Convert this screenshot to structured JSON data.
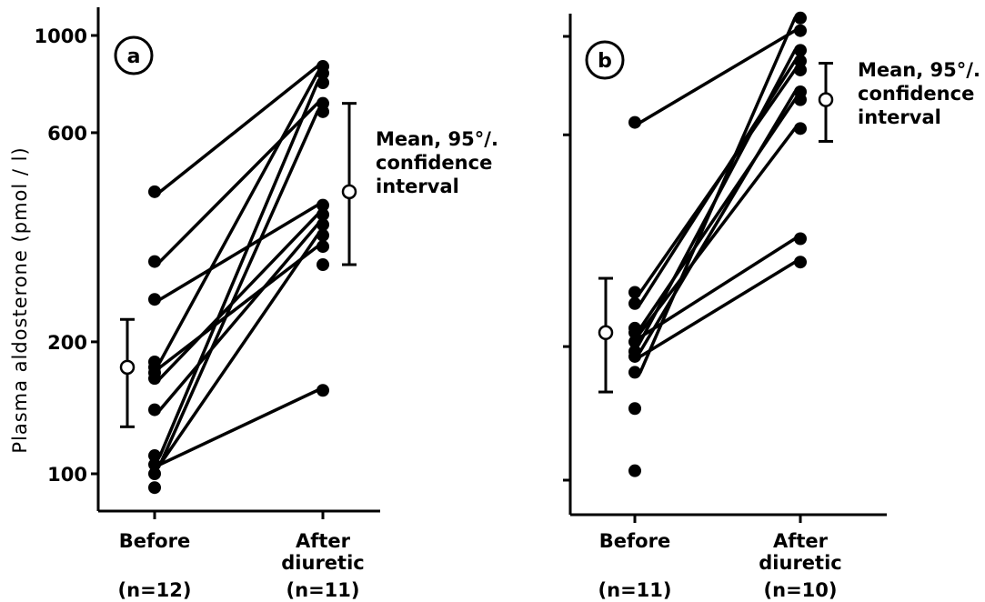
{
  "chart_data": {
    "type": "scatter",
    "ylabel": "Plasma aldosterone (pmol / l)",
    "yscale": "log",
    "yticks": [
      100,
      200,
      600,
      1000
    ],
    "ylim": [
      90,
      1100
    ],
    "panels": [
      {
        "label": "a",
        "categories": [
          "Before",
          "After diuretic"
        ],
        "category_lines": [
          [
            "Before"
          ],
          [
            "After",
            "diuretic"
          ]
        ],
        "n_labels": [
          "(n=12)",
          "(n=11)"
        ],
        "before": [
          440,
          305,
          250,
          180,
          175,
          170,
          165,
          140,
          110,
          105,
          100,
          93
        ],
        "after": [
          850,
          820,
          780,
          700,
          670,
          410,
          390,
          370,
          350,
          330,
          300,
          155
        ],
        "pairs": [
          [
            440,
            850
          ],
          [
            305,
            700
          ],
          [
            250,
            410
          ],
          [
            180,
            820
          ],
          [
            175,
            330
          ],
          [
            165,
            390
          ],
          [
            140,
            370
          ],
          [
            110,
            780
          ],
          [
            105,
            670
          ],
          [
            105,
            350
          ],
          [
            105,
            155
          ]
        ],
        "mean_before": {
          "mean": 175,
          "ci": [
            128,
            225
          ]
        },
        "mean_after": {
          "mean": 440,
          "ci": [
            300,
            700
          ]
        },
        "annotation": [
          "Mean, 95°/.",
          "confidence",
          "interval"
        ]
      },
      {
        "label": "b",
        "categories": [
          "Before",
          "After diuretic"
        ],
        "category_lines": [
          [
            "Before"
          ],
          [
            "After",
            "diuretic"
          ]
        ],
        "n_labels": [
          "(n=11)",
          "(n=10)"
        ],
        "before": [
          640,
          265,
          250,
          220,
          215,
          205,
          195,
          190,
          175,
          145,
          105
        ],
        "after": [
          1100,
          1030,
          930,
          880,
          840,
          750,
          720,
          620,
          350,
          310
        ],
        "pairs": [
          [
            640,
            1030
          ],
          [
            265,
            840
          ],
          [
            250,
            880
          ],
          [
            220,
            720
          ],
          [
            215,
            620
          ],
          [
            210,
            350
          ],
          [
            205,
            930
          ],
          [
            195,
            750
          ],
          [
            190,
            310
          ],
          [
            175,
            1100
          ]
        ],
        "mean_before": {
          "mean": 215,
          "ci": [
            158,
            285
          ]
        },
        "mean_after": {
          "mean": 720,
          "ci": [
            580,
            870
          ]
        },
        "annotation": [
          "Mean, 95°/.",
          "confidence",
          "interval"
        ]
      }
    ]
  }
}
